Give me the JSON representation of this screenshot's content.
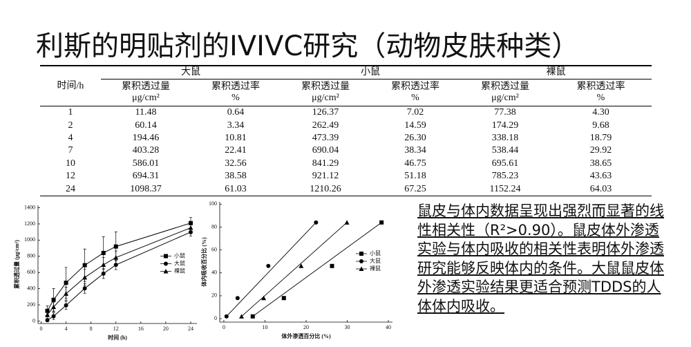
{
  "title": "利斯的明贴剂的IVIVC研究（动物皮肤种类）",
  "table": {
    "header": "时间/h",
    "groups": [
      "大鼠",
      "小鼠",
      "裸鼠"
    ],
    "sub_headers": [
      "累积透过量",
      "累积透过率",
      "累积透过量",
      "累积透过率",
      "累积透过量",
      "累积透过率"
    ],
    "units": [
      "μg/cm²",
      "%",
      "μg/cm²",
      "%",
      "μg/cm²",
      "%"
    ],
    "rows": [
      [
        "1",
        "11.48",
        "0.64",
        "126.37",
        "7.02",
        "77.38",
        "4.30"
      ],
      [
        "2",
        "60.14",
        "3.34",
        "262.49",
        "14.59",
        "174.29",
        "9.68"
      ],
      [
        "4",
        "194.46",
        "10.81",
        "473.39",
        "26.30",
        "338.18",
        "18.79"
      ],
      [
        "7",
        "403.28",
        "22.41",
        "690.04",
        "38.34",
        "538.44",
        "29.92"
      ],
      [
        "10",
        "586.01",
        "32.56",
        "841.29",
        "46.75",
        "695.61",
        "38.65"
      ],
      [
        "12",
        "694.31",
        "38.58",
        "921.12",
        "51.18",
        "785.23",
        "43.63"
      ],
      [
        "24",
        "1098.37",
        "61.03",
        "1210.26",
        "67.25",
        "1152.24",
        "64.03"
      ]
    ]
  },
  "chart_data": [
    {
      "type": "line",
      "x_label": "时间 (h)",
      "y_label": "累积透过量 (μg/cm²)",
      "x": [
        1,
        2,
        4,
        7,
        10,
        12,
        24
      ],
      "xlim": [
        -0.5,
        25
      ],
      "xticks": [
        0,
        4,
        8,
        12,
        16,
        20,
        24
      ],
      "ylim": [
        -30,
        1430
      ],
      "yticks": [
        0,
        200,
        400,
        600,
        800,
        1000,
        1200,
        1400
      ],
      "legend": "center right",
      "series": [
        {
          "name": "小鼠",
          "marker": "square",
          "color": "#000000",
          "values": [
            126.37,
            262.49,
            473.39,
            690.04,
            841.29,
            921.12,
            1210.26
          ],
          "errors": [
            60,
            140,
            190,
            200,
            200,
            180,
            70
          ]
        },
        {
          "name": "大鼠",
          "marker": "circle",
          "color": "#000000",
          "values": [
            11.48,
            60.14,
            194.46,
            403.28,
            586.01,
            694.31,
            1098.37
          ],
          "errors": [
            20,
            40,
            50,
            60,
            60,
            60,
            50
          ]
        },
        {
          "name": "裸鼠",
          "marker": "triangle",
          "color": "#000000",
          "values": [
            77.38,
            174.29,
            338.18,
            538.44,
            695.61,
            785.23,
            1152.24
          ],
          "errors": [
            30,
            60,
            80,
            100,
            90,
            80,
            60
          ]
        }
      ]
    },
    {
      "type": "scatter",
      "x_label": "体外渗透百分比 (%)",
      "y_label": "体内吸收百分比 (%)",
      "xlim": [
        -1,
        41
      ],
      "xticks": [
        0,
        10,
        20,
        30,
        40
      ],
      "ylim": [
        -3,
        102
      ],
      "yticks": [
        0,
        20,
        40,
        60,
        80,
        100
      ],
      "legend": "center right",
      "series": [
        {
          "name": "小鼠",
          "marker": "square",
          "color": "#000000",
          "x": [
            7.02,
            14.59,
            26.3,
            38.34
          ],
          "values": [
            2,
            18,
            46,
            84
          ]
        },
        {
          "name": "大鼠",
          "marker": "circle",
          "color": "#000000",
          "x": [
            0.64,
            3.34,
            10.81,
            22.41
          ],
          "values": [
            2,
            18,
            46,
            84
          ]
        },
        {
          "name": "裸鼠",
          "marker": "triangle",
          "color": "#000000",
          "x": [
            4.3,
            9.68,
            18.79,
            29.92
          ],
          "values": [
            2,
            18,
            46,
            84
          ]
        }
      ]
    }
  ],
  "paragraph": "鼠皮与体内数据呈现出强烈而显著的线性相关性（R²>0.90）。鼠皮体外渗透实验与体内吸收的相关性表明体外渗透研究能够反映体内的条件。大鼠鼠皮体外渗透实验结果更适合预测TDDS的人体体内吸收。"
}
